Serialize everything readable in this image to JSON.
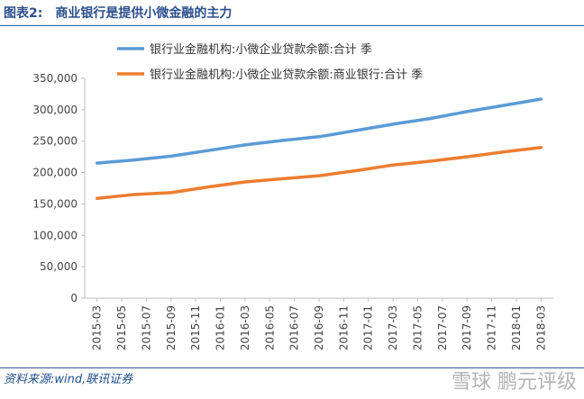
{
  "header": {
    "label": "图表2:",
    "title": "商业银行是提供小微金融的主力"
  },
  "footer": {
    "source": "资料来源:wind,联讯证券",
    "watermark_text": "雪球 鹏元评级"
  },
  "colors": {
    "title": "#2b4f8c",
    "rule": "#3a5a96",
    "series_total": "#5b9bd5",
    "series_bank": "#ed7d31",
    "axis": "#bfbfbf"
  },
  "chart_data": {
    "type": "line",
    "ylim": [
      0,
      350000
    ],
    "yticks": [
      {
        "value": 0,
        "label": "0"
      },
      {
        "value": 50000,
        "label": "50,000"
      },
      {
        "value": 100000,
        "label": "100,000"
      },
      {
        "value": 150000,
        "label": "150,000"
      },
      {
        "value": 200000,
        "label": "200,000"
      },
      {
        "value": 250000,
        "label": "250,000"
      },
      {
        "value": 300000,
        "label": "300,000"
      },
      {
        "value": 350000,
        "label": "350,000"
      }
    ],
    "x": [
      "2015-03",
      "2015-06",
      "2015-09",
      "2015-12",
      "2016-03",
      "2016-06",
      "2016-09",
      "2016-12",
      "2017-03",
      "2017-06",
      "2017-09",
      "2017-12",
      "2018-03"
    ],
    "xtick_labels": [
      "2015-03",
      "2015-05",
      "2015-07",
      "2015-09",
      "2015-11",
      "2016-01",
      "2016-03",
      "2016-05",
      "2016-07",
      "2016-09",
      "2016-11",
      "2017-01",
      "2017-03",
      "2017-05",
      "2017-07",
      "2017-09",
      "2017-11",
      "2018-01",
      "2018-03"
    ],
    "legend_position": "top",
    "grid": false,
    "series": [
      {
        "name": "银行业金融机构:小微企业贷款余额:合计 季",
        "color": "#5b9bd5",
        "values": [
          215000,
          220000,
          226000,
          235000,
          244000,
          251000,
          257000,
          267000,
          277000,
          286000,
          297000,
          307000,
          317000
        ]
      },
      {
        "name": "银行业金融机构:小微企业贷款余额:商业银行:合计 季",
        "color": "#ed7d31",
        "values": [
          159000,
          165000,
          168000,
          177000,
          185000,
          190000,
          195000,
          203000,
          212000,
          218000,
          225000,
          233000,
          240000
        ]
      }
    ]
  }
}
